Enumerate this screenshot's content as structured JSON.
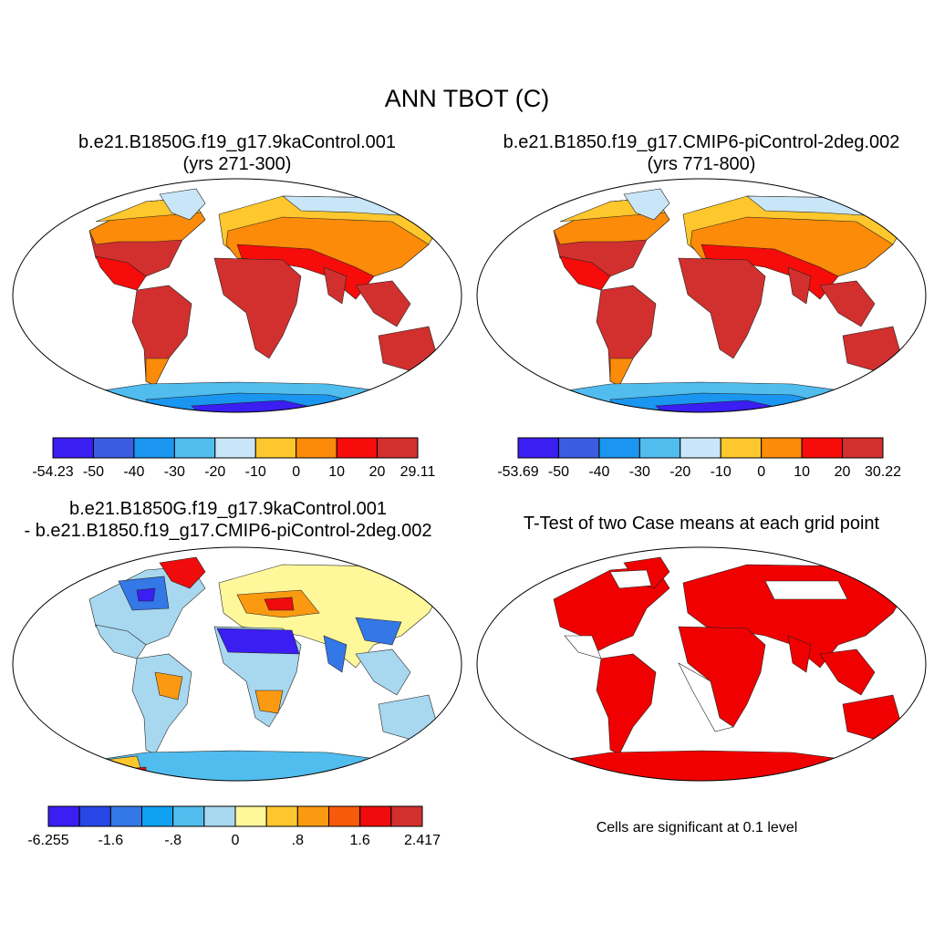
{
  "title": "ANN TBOT (C)",
  "panels": [
    {
      "title_lines": [
        "b.e21.B1850G.f19_g17.9kaControl.001",
        "(yrs 271-300)"
      ],
      "colorbar": {
        "labels": [
          "-54.23",
          "-50",
          "-40",
          "-30",
          "-20",
          "-10",
          "0",
          "10",
          "20",
          "29.11"
        ],
        "colors": [
          "#3a1ef2",
          "#3c5ce0",
          "#1a96f0",
          "#50bdee",
          "#c8e6f8",
          "#fec72d",
          "#fb8b08",
          "#f60c0a",
          "#d1302e"
        ]
      }
    },
    {
      "title_lines": [
        "b.e21.B1850.f19_g17.CMIP6-piControl-2deg.002",
        "(yrs 771-800)"
      ],
      "colorbar": {
        "labels": [
          "-53.69",
          "-50",
          "-40",
          "-30",
          "-20",
          "-10",
          "0",
          "10",
          "20",
          "30.22"
        ],
        "colors": [
          "#3a1ef2",
          "#3c5ce0",
          "#1a96f0",
          "#50bdee",
          "#c8e6f8",
          "#fec72d",
          "#fb8b08",
          "#f60c0a",
          "#d1302e"
        ]
      }
    },
    {
      "title_lines": [
        "b.e21.B1850G.f19_g17.9kaControl.001",
        "- b.e21.B1850.f19_g17.CMIP6-piControl-2deg.002"
      ],
      "colorbar": {
        "labels": [
          "-6.255",
          "-1.6",
          "-.8",
          "0",
          ".8",
          "1.6",
          "2.417"
        ],
        "colors": [
          "#3a1ef2",
          "#2946e6",
          "#3477e6",
          "#10a0f2",
          "#50bdee",
          "#a8d8f0",
          "#fef89a",
          "#fec72d",
          "#fb9a10",
          "#f75a0a",
          "#f00c0c",
          "#d1302e"
        ]
      }
    },
    {
      "title_lines": [
        "T-Test of two Case means at each grid point"
      ],
      "note": "Cells are significant at 0.1 level",
      "significant_color": "#f00000"
    }
  ]
}
